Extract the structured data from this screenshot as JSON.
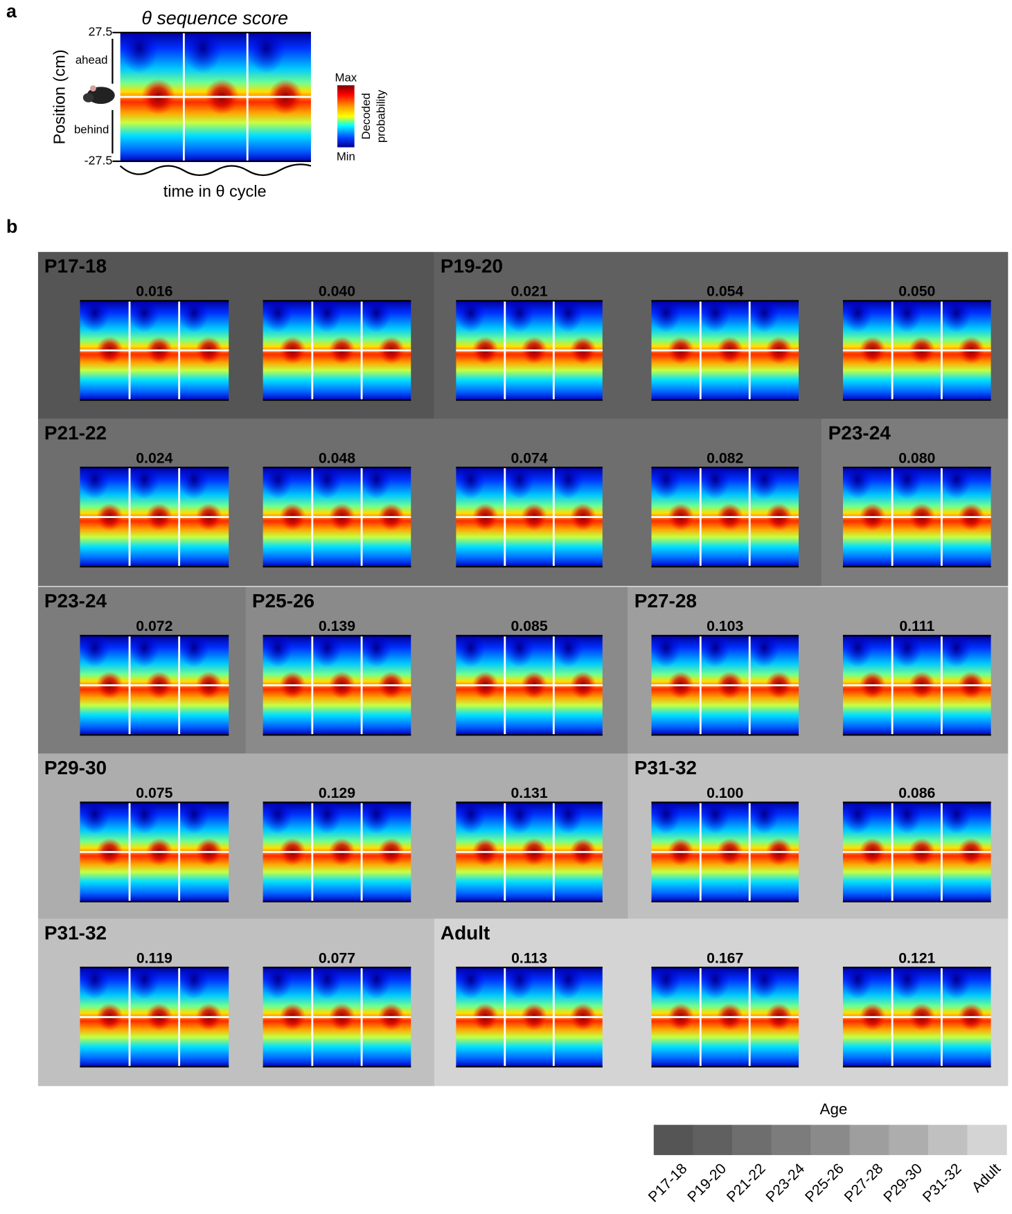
{
  "panel_a": {
    "label": "a",
    "title": "θ sequence score",
    "y_label": "Position (cm)",
    "y_top": "27.5",
    "y_bottom": "-27.5",
    "ahead": "ahead",
    "behind": "behind",
    "x_label": "time in θ cycle",
    "colorbar_max": "Max",
    "colorbar_min": "Min",
    "colorbar_label": [
      "Decoded",
      "probability"
    ]
  },
  "panel_b": {
    "label": "b",
    "groups": [
      {
        "label": "P17-18",
        "scores": [
          "0.016",
          "0.040"
        ]
      },
      {
        "label": "P19-20",
        "scores": [
          "0.021",
          "0.054",
          "0.050"
        ]
      },
      {
        "label": "P21-22",
        "scores": [
          "0.024",
          "0.048",
          "0.074",
          "0.082"
        ]
      },
      {
        "label": "P23-24",
        "scores": [
          "0.080"
        ]
      },
      {
        "label": "P23-24",
        "scores": [
          "0.072"
        ]
      },
      {
        "label": "P25-26",
        "scores": [
          "0.139",
          "0.085"
        ]
      },
      {
        "label": "P27-28",
        "scores": [
          "0.103",
          "0.111"
        ]
      },
      {
        "label": "P29-30",
        "scores": [
          "0.075",
          "0.129",
          "0.131"
        ]
      },
      {
        "label": "P31-32",
        "scores": [
          "0.100",
          "0.086"
        ]
      },
      {
        "label": "P31-32",
        "scores": [
          "0.119",
          "0.077"
        ]
      },
      {
        "label": "Adult",
        "scores": [
          "0.113",
          "0.167",
          "0.121"
        ]
      }
    ]
  },
  "legend": {
    "title": "Age",
    "labels": [
      "P17-18",
      "P19-20",
      "P21-22",
      "P23-24",
      "P25-26",
      "P27-28",
      "P29-30",
      "P31-32",
      "Adult"
    ]
  }
}
